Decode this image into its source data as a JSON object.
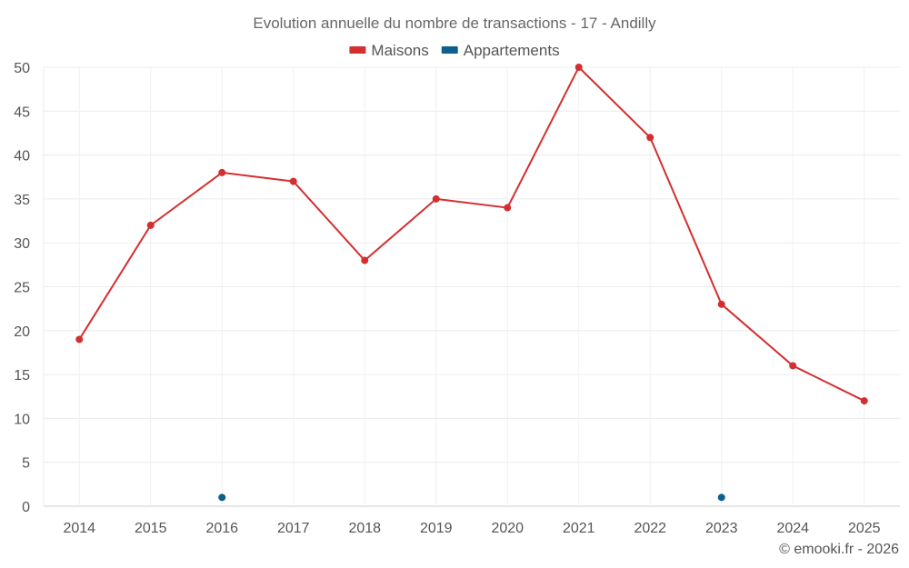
{
  "chart_data": {
    "type": "line",
    "title": "Evolution annuelle du nombre de transactions - 17 - Andilly",
    "categories": [
      "2014",
      "2015",
      "2016",
      "2017",
      "2018",
      "2019",
      "2020",
      "2021",
      "2022",
      "2023",
      "2024",
      "2025"
    ],
    "series": [
      {
        "name": "Maisons",
        "color": "#d32f2f",
        "values": [
          19,
          32,
          38,
          37,
          28,
          35,
          34,
          50,
          42,
          23,
          16,
          12
        ]
      },
      {
        "name": "Appartements",
        "color": "#0d5f8f",
        "values": [
          null,
          null,
          1,
          null,
          null,
          null,
          null,
          null,
          null,
          1,
          null,
          null
        ]
      }
    ],
    "ylim": [
      0,
      50
    ],
    "yticks": [
      0,
      5,
      10,
      15,
      20,
      25,
      30,
      35,
      40,
      45,
      50
    ],
    "xlabel": "",
    "ylabel": "",
    "legend_position": "top-center",
    "grid": true
  },
  "credit": "© emooki.fr - 2026"
}
